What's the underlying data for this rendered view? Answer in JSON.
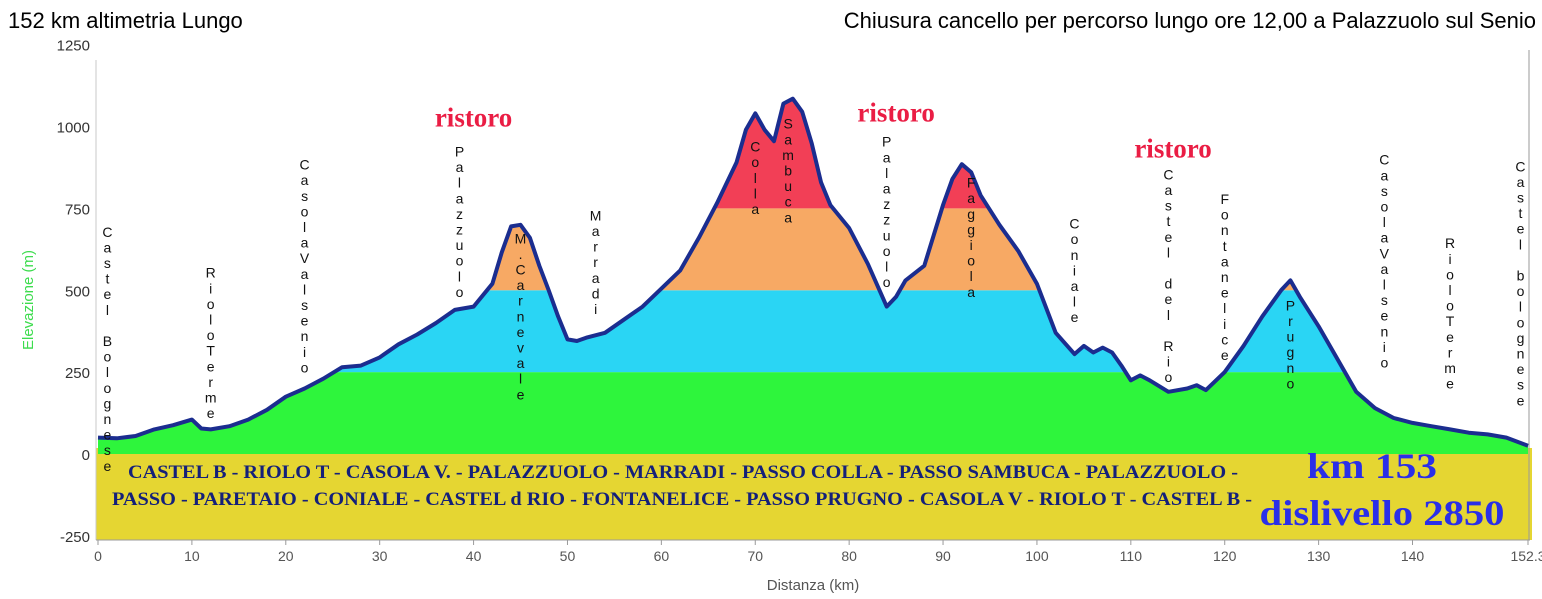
{
  "header": {
    "title_left": "152 km altimetria Lungo",
    "title_right": "Chiusura cancello per percorso lungo ore 12,00 a Palazzuolo sul Senio"
  },
  "chart_data": {
    "type": "area",
    "xlabel": "Distanza (km)",
    "ylabel": "Elevazione (m)",
    "xlim": [
      0,
      152.3
    ],
    "ylim": [
      -250,
      1250
    ],
    "x_ticks": [
      0,
      10,
      20,
      30,
      40,
      50,
      60,
      70,
      80,
      90,
      100,
      110,
      120,
      130,
      140,
      152.3
    ],
    "x_tick_labels": [
      "0",
      "10",
      "20",
      "30",
      "40",
      "50",
      "60",
      "70",
      "80",
      "90",
      "100",
      "110",
      "120",
      "130",
      "140",
      "152.3"
    ],
    "y_ticks": [
      -250,
      0,
      250,
      500,
      750,
      1000,
      1250
    ],
    "y_tick_labels": [
      "-250",
      "0",
      "250",
      "500",
      "750",
      "1000",
      "1250"
    ],
    "grid": false,
    "band_colors": [
      {
        "from": 0,
        "to": 250,
        "color": "#2ef53c"
      },
      {
        "from": 250,
        "to": 500,
        "color": "#2ad5f4"
      },
      {
        "from": 500,
        "to": 750,
        "color": "#f7a964"
      },
      {
        "from": 750,
        "to": 1250,
        "color": "#f23f56"
      }
    ],
    "line_color": "#1b2d8f",
    "profile": [
      [
        0,
        50
      ],
      [
        2,
        48
      ],
      [
        4,
        55
      ],
      [
        6,
        75
      ],
      [
        8,
        88
      ],
      [
        10,
        105
      ],
      [
        11,
        78
      ],
      [
        12,
        75
      ],
      [
        14,
        85
      ],
      [
        16,
        105
      ],
      [
        18,
        135
      ],
      [
        20,
        175
      ],
      [
        22,
        200
      ],
      [
        24,
        230
      ],
      [
        26,
        265
      ],
      [
        28,
        270
      ],
      [
        30,
        295
      ],
      [
        32,
        335
      ],
      [
        34,
        365
      ],
      [
        36,
        400
      ],
      [
        38,
        440
      ],
      [
        40,
        450
      ],
      [
        42,
        520
      ],
      [
        43,
        615
      ],
      [
        44,
        695
      ],
      [
        45,
        700
      ],
      [
        46,
        660
      ],
      [
        47,
        575
      ],
      [
        48,
        500
      ],
      [
        49,
        420
      ],
      [
        50,
        350
      ],
      [
        51,
        345
      ],
      [
        52,
        355
      ],
      [
        54,
        370
      ],
      [
        56,
        410
      ],
      [
        58,
        450
      ],
      [
        60,
        505
      ],
      [
        62,
        560
      ],
      [
        64,
        660
      ],
      [
        66,
        770
      ],
      [
        68,
        890
      ],
      [
        69,
        990
      ],
      [
        70,
        1040
      ],
      [
        71,
        990
      ],
      [
        72,
        955
      ],
      [
        73,
        1070
      ],
      [
        74,
        1085
      ],
      [
        75,
        1045
      ],
      [
        76,
        950
      ],
      [
        77,
        830
      ],
      [
        78,
        760
      ],
      [
        80,
        690
      ],
      [
        82,
        580
      ],
      [
        84,
        450
      ],
      [
        85,
        480
      ],
      [
        86,
        530
      ],
      [
        88,
        575
      ],
      [
        90,
        760
      ],
      [
        91,
        840
      ],
      [
        92,
        885
      ],
      [
        93,
        860
      ],
      [
        94,
        790
      ],
      [
        96,
        700
      ],
      [
        98,
        620
      ],
      [
        100,
        520
      ],
      [
        102,
        370
      ],
      [
        104,
        305
      ],
      [
        105,
        330
      ],
      [
        106,
        310
      ],
      [
        107,
        325
      ],
      [
        108,
        310
      ],
      [
        109,
        270
      ],
      [
        110,
        225
      ],
      [
        111,
        240
      ],
      [
        112,
        225
      ],
      [
        114,
        190
      ],
      [
        116,
        200
      ],
      [
        117,
        210
      ],
      [
        118,
        195
      ],
      [
        120,
        250
      ],
      [
        122,
        330
      ],
      [
        124,
        420
      ],
      [
        126,
        500
      ],
      [
        127,
        530
      ],
      [
        128,
        480
      ],
      [
        130,
        390
      ],
      [
        132,
        290
      ],
      [
        134,
        190
      ],
      [
        136,
        140
      ],
      [
        138,
        110
      ],
      [
        140,
        95
      ],
      [
        142,
        85
      ],
      [
        144,
        75
      ],
      [
        146,
        65
      ],
      [
        148,
        60
      ],
      [
        150,
        50
      ],
      [
        152.3,
        25
      ]
    ],
    "location_labels": [
      {
        "x": 1,
        "text": "Castel Bolognese",
        "top": 700
      },
      {
        "x": 12,
        "text": "RioloTerme",
        "top": 575
      },
      {
        "x": 22,
        "text": "CasolaValsenio",
        "top": 905
      },
      {
        "x": 38.5,
        "text": "Palazzuolo",
        "top": 945
      },
      {
        "x": 45,
        "text": "M.Carnevale",
        "top": 680
      },
      {
        "x": 53,
        "text": "Marradi",
        "top": 750
      },
      {
        "x": 70,
        "text": "Colla",
        "top": 960
      },
      {
        "x": 73.5,
        "text": "Sambuca",
        "top": 1030
      },
      {
        "x": 84,
        "text": "Palazzuolo",
        "top": 975
      },
      {
        "x": 93,
        "text": "Faggiola",
        "top": 850
      },
      {
        "x": 104,
        "text": "Coniale",
        "top": 725
      },
      {
        "x": 114,
        "text": "Castel del Rio",
        "top": 875
      },
      {
        "x": 120,
        "text": "Fontanelice",
        "top": 800
      },
      {
        "x": 127,
        "text": "Prugno",
        "top": 475
      },
      {
        "x": 137,
        "text": "CasolaValsenio",
        "top": 920
      },
      {
        "x": 144,
        "text": "RioloTerme",
        "top": 665
      },
      {
        "x": 151.5,
        "text": "Castel bolognese",
        "top": 900
      }
    ],
    "annotations": [
      {
        "x": 40,
        "y": 1000,
        "text": "ristoro"
      },
      {
        "x": 85,
        "y": 1015,
        "text": "ristoro"
      },
      {
        "x": 114.5,
        "y": 905,
        "text": "ristoro"
      }
    ],
    "route_box": {
      "line1": "CASTEL B - RIOLO T - CASOLA V. - PALAZZUOLO - MARRADI - PASSO COLLA - PASSO SAMBUCA - PALAZZUOLO -",
      "line2": "PASSO - PARETAIO - CONIALE - CASTEL d RIO - FONTANELICE - PASSO PRUGNO - CASOLA V - RIOLO T - CASTEL B -",
      "km": "km 153",
      "dislivello": "dislivello 2850",
      "color": "#e5d632"
    }
  }
}
